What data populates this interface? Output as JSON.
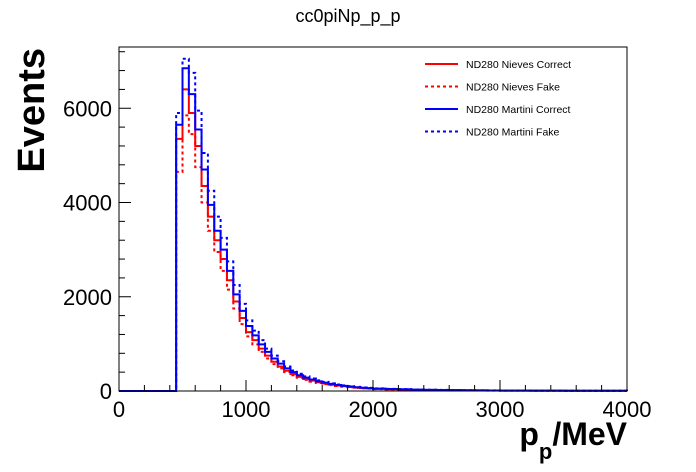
{
  "chart_data": {
    "type": "line",
    "title": "cc0piNp_p_p",
    "xlabel": "p_p/MeV",
    "xlabel_main": "p",
    "xlabel_sub": "p",
    "xlabel_unit": "/MeV",
    "ylabel": "Events",
    "xlim": [
      0,
      4000
    ],
    "ylim": [
      0,
      7300
    ],
    "x_ticks": [
      0,
      1000,
      2000,
      3000,
      4000
    ],
    "y_ticks": [
      0,
      2000,
      4000,
      6000
    ],
    "legend_position": "top-right",
    "grid": false,
    "bin_edges": [
      0,
      50,
      100,
      150,
      200,
      250,
      300,
      350,
      400,
      450,
      500,
      550,
      600,
      650,
      700,
      750,
      800,
      850,
      900,
      950,
      1000,
      1050,
      1100,
      1150,
      1200,
      1250,
      1300,
      1350,
      1400,
      1450,
      1500,
      1550,
      1600,
      1650,
      1700,
      1750,
      1800,
      1850,
      1900,
      1950,
      2000,
      2100,
      2200,
      2300,
      2400,
      2500,
      2600,
      2700,
      2800,
      2900,
      3000,
      3250,
      3500,
      3750,
      4000
    ],
    "series": [
      {
        "name": "ND280 Nieves Correct",
        "color": "#ff0000",
        "style": "solid",
        "values": [
          0,
          0,
          0,
          0,
          0,
          0,
          0,
          0,
          0,
          5350,
          6400,
          5900,
          5200,
          4350,
          3700,
          3200,
          2800,
          2350,
          1900,
          1550,
          1250,
          1080,
          900,
          750,
          620,
          520,
          430,
          360,
          300,
          255,
          220,
          185,
          160,
          135,
          115,
          100,
          85,
          72,
          62,
          55,
          45,
          38,
          32,
          27,
          23,
          19,
          16,
          14,
          12,
          10,
          8,
          6,
          5,
          4
        ]
      },
      {
        "name": "ND280 Nieves Fake",
        "color": "#ff0000",
        "style": "dashed",
        "values": [
          0,
          0,
          0,
          0,
          0,
          0,
          0,
          0,
          0,
          4650,
          5850,
          5450,
          4750,
          4000,
          3400,
          2950,
          2550,
          2150,
          1750,
          1420,
          1160,
          990,
          830,
          690,
          570,
          480,
          400,
          335,
          280,
          235,
          200,
          170,
          145,
          125,
          105,
          90,
          78,
          66,
          57,
          50,
          41,
          35,
          29,
          25,
          21,
          17,
          15,
          13,
          11,
          9,
          7,
          5,
          4,
          3
        ]
      },
      {
        "name": "ND280 Martini Correct",
        "color": "#0000ff",
        "style": "solid",
        "values": [
          0,
          0,
          0,
          0,
          0,
          0,
          0,
          0,
          0,
          5650,
          6850,
          6300,
          5550,
          4700,
          3950,
          3400,
          3000,
          2550,
          2050,
          1700,
          1380,
          1180,
          990,
          830,
          690,
          580,
          480,
          400,
          335,
          285,
          245,
          205,
          178,
          150,
          128,
          110,
          95,
          80,
          69,
          60,
          50,
          42,
          36,
          30,
          25,
          21,
          18,
          15,
          13,
          11,
          9,
          7,
          5,
          4
        ]
      },
      {
        "name": "ND280 Martini Fake",
        "color": "#0000ff",
        "style": "dashed",
        "values": [
          0,
          0,
          0,
          0,
          0,
          0,
          0,
          0,
          0,
          5900,
          7050,
          6750,
          5950,
          5050,
          4250,
          3700,
          3250,
          2750,
          2250,
          1850,
          1500,
          1280,
          1080,
          900,
          750,
          630,
          520,
          435,
          365,
          310,
          265,
          225,
          193,
          163,
          139,
          120,
          103,
          88,
          75,
          65,
          55,
          46,
          39,
          33,
          27,
          23,
          19,
          16,
          14,
          12,
          10,
          8,
          6,
          4
        ]
      }
    ]
  }
}
